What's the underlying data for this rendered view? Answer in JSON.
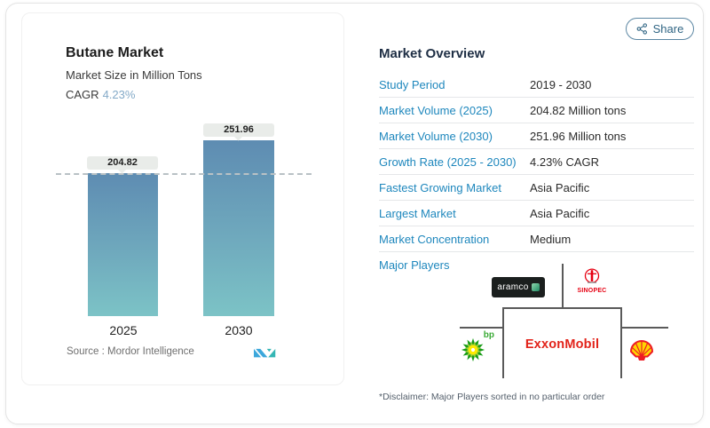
{
  "share": {
    "label": "Share"
  },
  "left_panel": {
    "title": "Butane Market",
    "subtitle": "Market Size in Million Tons",
    "cagr_label": "CAGR",
    "cagr_value": "4.23%",
    "source_label": "Source :  Mordor Intelligence"
  },
  "chart_data": {
    "type": "bar",
    "categories": [
      "2025",
      "2030"
    ],
    "values": [
      204.82,
      251.96
    ],
    "value_labels": [
      "204.82",
      "251.96"
    ],
    "title": "Butane Market",
    "subtitle": "Market Size in Million Tons",
    "ylabel": "Market Size in Million Tons",
    "ylim": [
      0,
      260
    ],
    "reference_line": 204.82,
    "grid": false,
    "bar_color_top": "#5e8cb2",
    "bar_color_bottom": "#7cc3c6"
  },
  "overview": {
    "title": "Market Overview",
    "rows": [
      {
        "label": "Study Period",
        "value": "2019 - 2030"
      },
      {
        "label": "Market Volume (2025)",
        "value": "204.82 Million tons"
      },
      {
        "label": "Market Volume (2030)",
        "value": "251.96 Million tons"
      },
      {
        "label": "Growth Rate (2025 - 2030)",
        "value": "4.23% CAGR"
      },
      {
        "label": "Fastest Growing Market",
        "value": "Asia Pacific"
      },
      {
        "label": "Largest Market",
        "value": "Asia Pacific"
      },
      {
        "label": "Market Concentration",
        "value": "Medium"
      }
    ],
    "major_players_label": "Major Players",
    "players": [
      "aramco",
      "SINOPEC",
      "ExxonMobil",
      "bp",
      "Shell"
    ],
    "disclaimer": "*Disclaimer: Major Players sorted in no particular order"
  },
  "colors": {
    "accent_blue": "#1e87bd",
    "title_navy": "#1f2f45",
    "exxon_red": "#e2231a",
    "sinopec_red": "#e60012",
    "bp_green": "#169b16",
    "shell_red": "#ed1c24",
    "shell_yellow": "#ffd500"
  }
}
